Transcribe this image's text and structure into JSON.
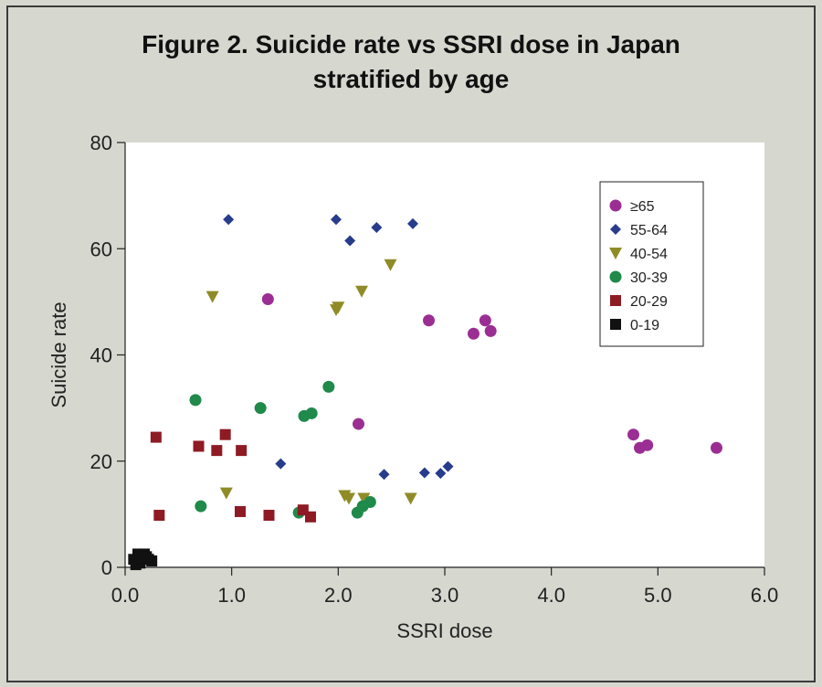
{
  "chart_data": {
    "type": "scatter",
    "title": "Figure 2.  Suicide rate vs SSRI dose in Japan",
    "subtitle": "stratified by age",
    "xlabel": "SSRI dose",
    "ylabel": "Suicide rate",
    "xlim": [
      0,
      6
    ],
    "ylim": [
      0,
      80
    ],
    "xticks": [
      "0.0",
      "1.0",
      "2.0",
      "3.0",
      "4.0",
      "5.0",
      "6.0"
    ],
    "yticks": [
      "0",
      "20",
      "40",
      "60",
      "80"
    ],
    "legend_position": "top-right",
    "series": [
      {
        "name": "≥65",
        "marker": "circle",
        "color": "#9b2e93",
        "x": [
          1.34,
          2.19,
          2.85,
          3.27,
          3.38,
          3.43,
          4.77,
          4.83,
          4.9,
          5.55
        ],
        "y": [
          50.5,
          27.0,
          46.5,
          44.0,
          46.5,
          44.5,
          25.0,
          22.5,
          23.0,
          22.5
        ]
      },
      {
        "name": "55-64",
        "marker": "diamond",
        "color": "#283c8c",
        "x": [
          0.97,
          1.98,
          2.11,
          2.36,
          2.7,
          1.46,
          2.43,
          2.81,
          2.96,
          3.03
        ],
        "y": [
          65.5,
          65.5,
          61.5,
          64.0,
          64.7,
          19.5,
          17.5,
          17.8,
          17.7,
          19.0
        ]
      },
      {
        "name": "40-54",
        "marker": "triangle-down",
        "color": "#8f8c28",
        "x": [
          0.82,
          1.98,
          2.0,
          2.22,
          2.49,
          0.95,
          2.06,
          2.1,
          2.24,
          2.68
        ],
        "y": [
          51.0,
          48.5,
          49.0,
          52.0,
          57.0,
          14.0,
          13.5,
          13.0,
          13.0,
          13.0
        ]
      },
      {
        "name": "30-39",
        "marker": "circle",
        "color": "#1f8a4a",
        "x": [
          0.66,
          1.27,
          1.68,
          1.75,
          1.91,
          0.71,
          1.63,
          2.18,
          2.23,
          2.3
        ],
        "y": [
          31.5,
          30.0,
          28.5,
          29.0,
          34.0,
          11.5,
          10.3,
          10.3,
          11.5,
          12.3
        ]
      },
      {
        "name": "20-29",
        "marker": "square",
        "color": "#8e1a24",
        "x": [
          0.29,
          0.69,
          0.86,
          0.94,
          1.09,
          0.32,
          1.08,
          1.35,
          1.67,
          1.74
        ],
        "y": [
          24.5,
          22.8,
          22.0,
          25.0,
          22.0,
          9.8,
          10.5,
          9.8,
          10.8,
          9.5
        ]
      },
      {
        "name": "0-19",
        "marker": "square",
        "color": "#111111",
        "x": [
          0.08,
          0.12,
          0.14,
          0.18,
          0.22,
          0.25,
          0.1,
          0.16,
          0.2
        ],
        "y": [
          1.5,
          2.5,
          0.8,
          2.5,
          1.5,
          1.2,
          0.5,
          1.8,
          2.0
        ]
      }
    ]
  }
}
